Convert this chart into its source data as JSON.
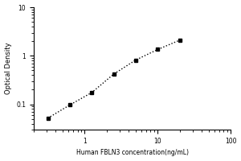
{
  "x": [
    0.313,
    0.625,
    1.25,
    2.5,
    5.0,
    10.0,
    20.0
  ],
  "y": [
    0.052,
    0.097,
    0.175,
    0.42,
    0.82,
    1.35,
    2.1
  ],
  "xlabel": "Human FBLN3 concentration(ng/mL)",
  "ylabel": "Optical Density",
  "xlim": [
    0.2,
    100
  ],
  "ylim": [
    0.03,
    10
  ],
  "marker": "s",
  "marker_color": "black",
  "marker_size": 3.5,
  "line_style": "dotted",
  "line_color": "black",
  "line_width": 1.0,
  "bg_color": "#ffffff",
  "xlabel_fontsize": 5.5,
  "ylabel_fontsize": 6,
  "tick_fontsize": 5.5,
  "yticks": [
    0.1,
    1.0,
    10.0
  ],
  "ytick_labels": [
    "0.1",
    "1",
    "10"
  ],
  "xticks": [
    1,
    10,
    100
  ],
  "xtick_labels": [
    "1",
    "10",
    "100"
  ]
}
